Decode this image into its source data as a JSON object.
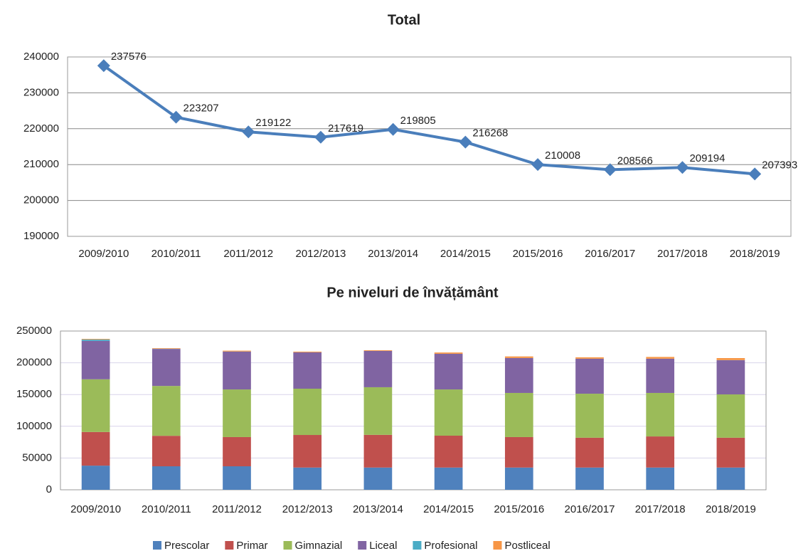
{
  "chart_data": [
    {
      "type": "line",
      "title": "Total",
      "categories": [
        "2009/2010",
        "2010/2011",
        "2011/2012",
        "2012/2013",
        "2013/2014",
        "2014/2015",
        "2015/2016",
        "2016/2017",
        "2017/2018",
        "2018/2019"
      ],
      "series": [
        {
          "name": "Total",
          "color": "#4a7ebb",
          "values": [
            237576,
            223207,
            219122,
            217619,
            219805,
            216268,
            210008,
            208566,
            209194,
            207393
          ]
        }
      ],
      "ylim": [
        190000,
        240000
      ],
      "yticks": [
        190000,
        200000,
        210000,
        220000,
        230000,
        240000
      ],
      "grid": true
    },
    {
      "type": "stacked_bar",
      "title": "Pe niveluri de învățământ",
      "categories": [
        "2009/2010",
        "2010/2011",
        "2011/2012",
        "2012/2013",
        "2013/2014",
        "2014/2015",
        "2015/2016",
        "2016/2017",
        "2017/2018",
        "2018/2019"
      ],
      "series": [
        {
          "name": "Prescolar",
          "color": "#4f81bd",
          "values": [
            38000,
            37000,
            37000,
            35000,
            35000,
            35000,
            35000,
            35000,
            35000,
            35000
          ]
        },
        {
          "name": "Primar",
          "color": "#c0504d",
          "values": [
            53000,
            48000,
            46000,
            51300,
            51500,
            50200,
            48000,
            47000,
            49000,
            47000
          ]
        },
        {
          "name": "Gimnazial",
          "color": "#9bbb59",
          "values": [
            83000,
            78500,
            75000,
            72900,
            75000,
            72800,
            69500,
            69300,
            68500,
            68200
          ]
        },
        {
          "name": "Liceal",
          "color": "#8064a2",
          "values": [
            60500,
            58300,
            59600,
            57200,
            57100,
            56100,
            54900,
            55000,
            53800,
            53800
          ]
        },
        {
          "name": "Profesional",
          "color": "#4bacc6",
          "values": [
            2100,
            300,
            200,
            100,
            100,
            100,
            100,
            100,
            100,
            200
          ]
        },
        {
          "name": "Postliceal",
          "color": "#f79646",
          "values": [
            1000,
            900,
            1300,
            1100,
            1100,
            2000,
            2500,
            2200,
            2800,
            3200
          ]
        }
      ],
      "ylim": [
        0,
        250000
      ],
      "yticks": [
        0,
        50000,
        100000,
        150000,
        200000,
        250000
      ],
      "grid": true,
      "legend": "bottom"
    }
  ]
}
